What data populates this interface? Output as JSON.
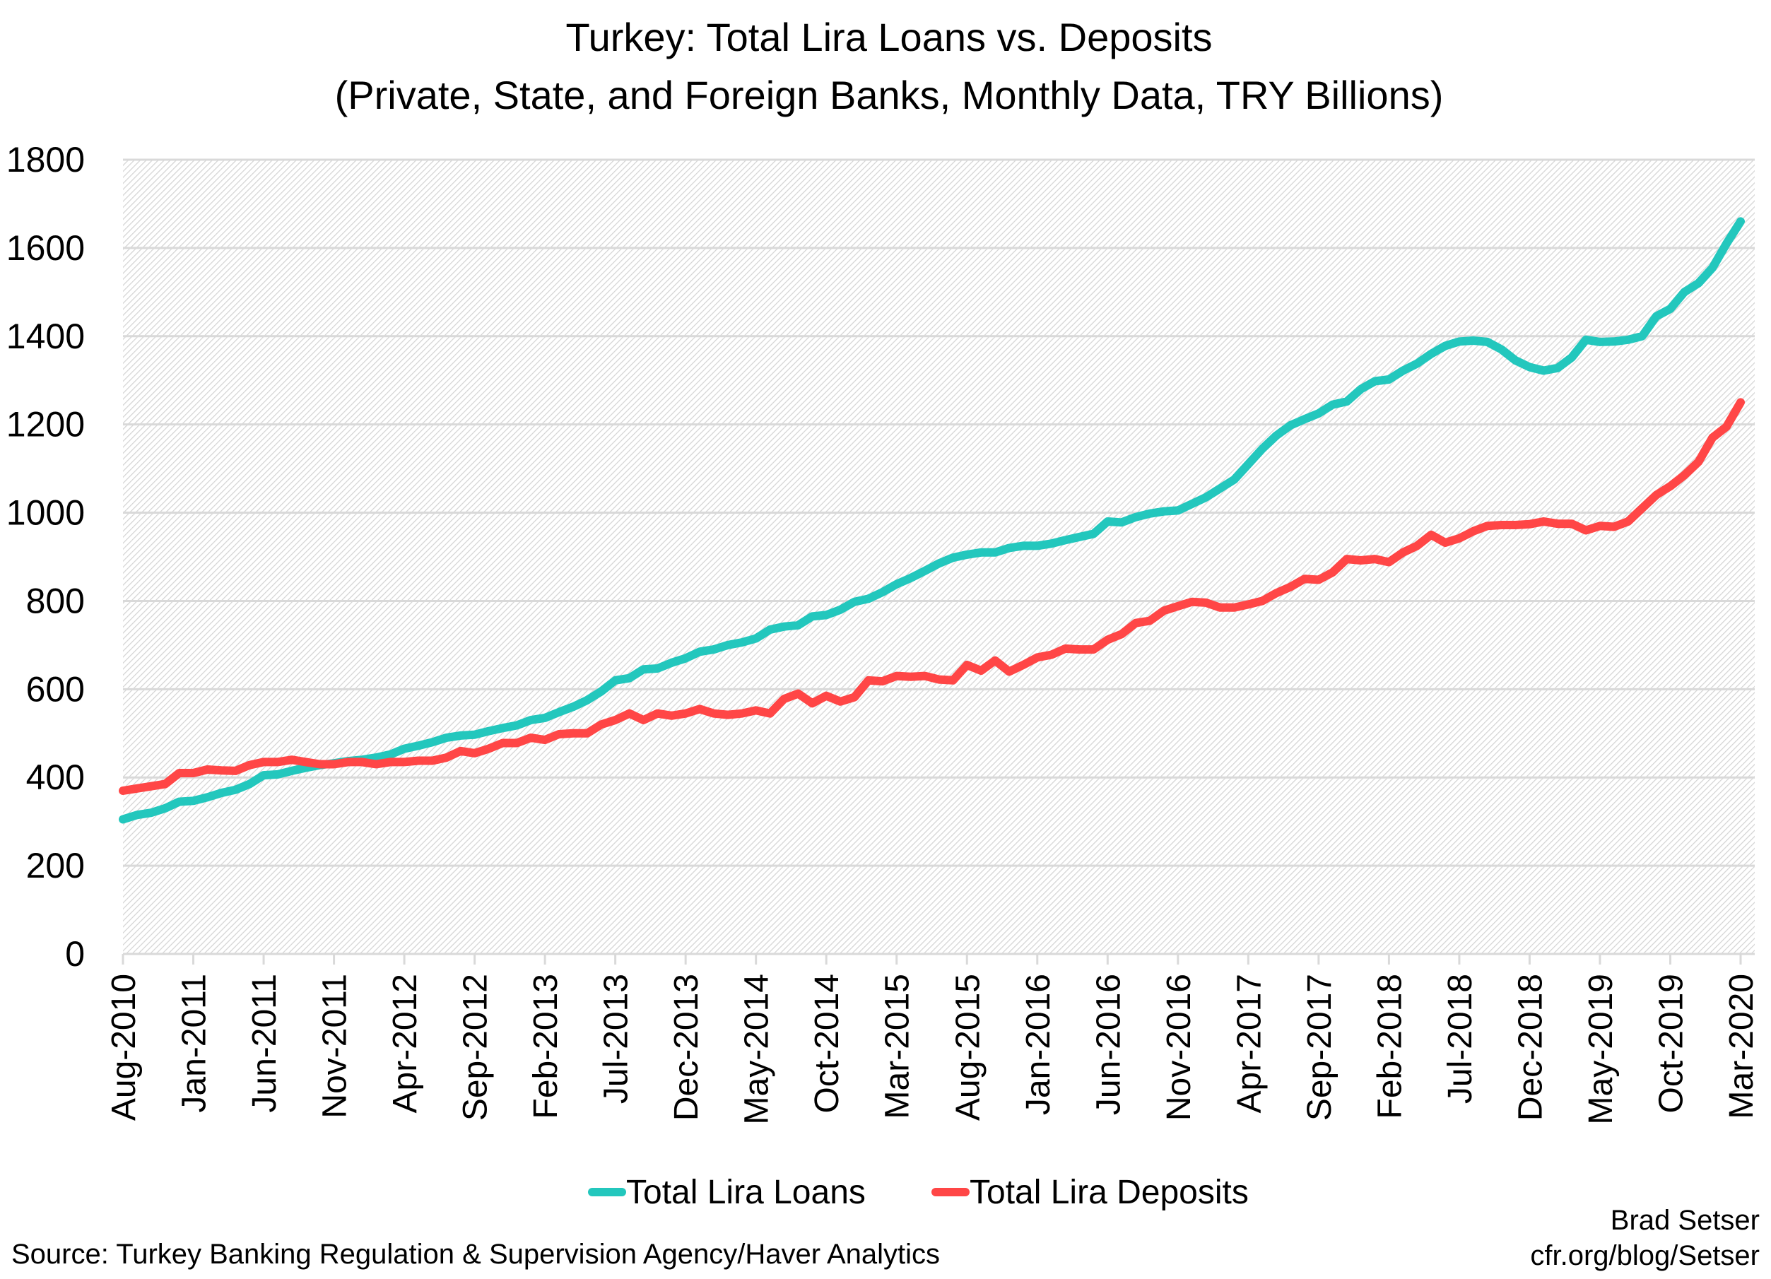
{
  "chart_data": {
    "type": "line",
    "title": "Turkey: Total Lira Loans vs. Deposits",
    "subtitle": "(Private, State, and Foreign Banks, Monthly Data, TRY Billions)",
    "xlabel": "",
    "ylabel": "",
    "start_month": "Aug-2010",
    "end_month": "Mar-2020",
    "ylim": [
      0,
      1800
    ],
    "yticks": [
      "0",
      "200",
      "400",
      "600",
      "800",
      "1000",
      "1200",
      "1400",
      "1600",
      "1800"
    ],
    "xticks": [
      "Aug-2010",
      "Jan-2011",
      "Jun-2011",
      "Nov-2011",
      "Apr-2012",
      "Sep-2012",
      "Feb-2013",
      "Jul-2013",
      "Dec-2013",
      "May-2014",
      "Oct-2014",
      "Mar-2015",
      "Aug-2015",
      "Jan-2016",
      "Jun-2016",
      "Nov-2016",
      "Apr-2017",
      "Sep-2017",
      "Feb-2018",
      "Jul-2018",
      "Dec-2018",
      "May-2019",
      "Oct-2019",
      "Mar-2020"
    ],
    "grid": true,
    "legend_position": "bottom",
    "series": [
      {
        "name": "Total Lira Loans",
        "color": "#23c7bd",
        "values": [
          305,
          315,
          320,
          330,
          345,
          347,
          355,
          365,
          372,
          385,
          405,
          407,
          415,
          422,
          428,
          432,
          437,
          440,
          445,
          452,
          465,
          472,
          480,
          490,
          495,
          497,
          505,
          512,
          518,
          530,
          535,
          548,
          560,
          575,
          595,
          620,
          625,
          645,
          647,
          660,
          670,
          685,
          690,
          700,
          706,
          715,
          735,
          742,
          745,
          765,
          768,
          780,
          798,
          805,
          820,
          838,
          852,
          868,
          885,
          898,
          905,
          910,
          910,
          920,
          925,
          925,
          930,
          938,
          945,
          952,
          980,
          978,
          990,
          998,
          1003,
          1005,
          1020,
          1035,
          1055,
          1075,
          1110,
          1145,
          1175,
          1198,
          1212,
          1225,
          1245,
          1252,
          1280,
          1298,
          1302,
          1322,
          1338,
          1360,
          1378,
          1388,
          1390,
          1387,
          1370,
          1345,
          1330,
          1322,
          1328,
          1352,
          1392,
          1387,
          1388,
          1392,
          1400,
          1445,
          1462,
          1500,
          1520,
          1555,
          1610,
          1660
        ]
      },
      {
        "name": "Total Lira Deposits",
        "color": "#ff4646",
        "values": [
          370,
          375,
          380,
          385,
          410,
          410,
          418,
          416,
          415,
          428,
          435,
          435,
          440,
          435,
          430,
          430,
          435,
          435,
          430,
          435,
          435,
          438,
          438,
          445,
          460,
          455,
          465,
          478,
          478,
          490,
          485,
          498,
          500,
          500,
          520,
          530,
          545,
          530,
          545,
          540,
          545,
          555,
          545,
          542,
          545,
          552,
          545,
          578,
          590,
          568,
          585,
          572,
          582,
          620,
          618,
          630,
          628,
          630,
          622,
          620,
          655,
          642,
          665,
          640,
          655,
          672,
          678,
          692,
          690,
          690,
          712,
          725,
          750,
          755,
          778,
          788,
          798,
          796,
          785,
          785,
          792,
          800,
          818,
          832,
          850,
          848,
          865,
          895,
          892,
          895,
          888,
          910,
          925,
          950,
          932,
          942,
          958,
          970,
          972,
          972,
          974,
          980,
          975,
          975,
          960,
          970,
          968,
          980,
          1010,
          1040,
          1060,
          1085,
          1115,
          1170,
          1195,
          1250
        ]
      }
    ]
  },
  "footer": {
    "source": "Source: Turkey Banking Regulation & Supervision Agency/Haver Analytics",
    "author": "Brad Setser",
    "url": "cfr.org/blog/Setser"
  }
}
